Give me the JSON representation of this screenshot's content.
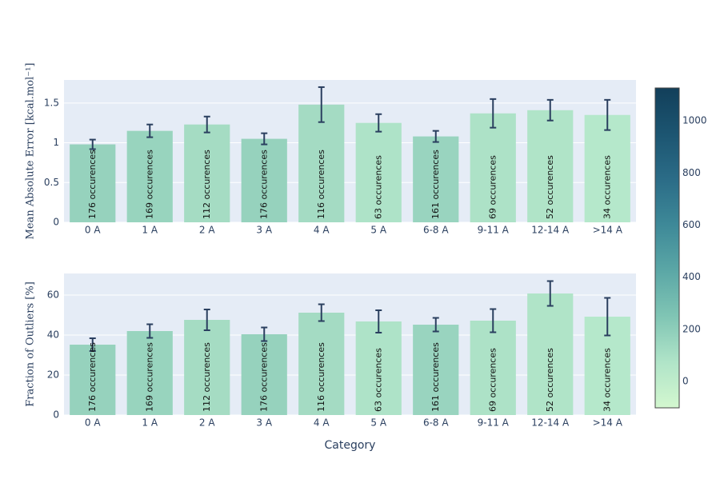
{
  "chart_data": [
    {
      "type": "bar",
      "ylabel": "Mean Absolute Error [kcal.mol⁻¹]",
      "categories": [
        "0 A",
        "1 A",
        "2 A",
        "3 A",
        "4 A",
        "5 A",
        "6-8 A",
        "9-11 A",
        "12-14 A",
        ">14 A"
      ],
      "values": [
        0.98,
        1.15,
        1.23,
        1.05,
        1.48,
        1.25,
        1.08,
        1.37,
        1.41,
        1.35
      ],
      "errors": [
        0.06,
        0.08,
        0.1,
        0.07,
        0.22,
        0.11,
        0.07,
        0.18,
        0.13,
        0.19
      ],
      "bar_labels": [
        "176 occurences",
        "169 occurences",
        "112 occurences",
        "176 occurences",
        "116 occurences",
        "63 occurences",
        "161 occurences",
        "69 occurences",
        "52 occurences",
        "34 occurences"
      ],
      "colors": [
        "#96d2bd",
        "#98d4be",
        "#a5dcc3",
        "#96d2bd",
        "#a4dbc3",
        "#aee3c8",
        "#99d4bf",
        "#ade2c7",
        "#b0e4c8",
        "#b5e8cb"
      ],
      "ylim": [
        0,
        1.79
      ],
      "yticks": [
        0,
        0.5,
        1,
        1.5
      ],
      "grid": true
    },
    {
      "type": "bar",
      "ylabel": "Fraction of Outliers [%]",
      "xlabel": "Category",
      "categories": [
        "0 A",
        "1 A",
        "2 A",
        "3 A",
        "4 A",
        "5 A",
        "6-8 A",
        "9-11 A",
        "12-14 A",
        ">14 A"
      ],
      "values": [
        35.2,
        42,
        47.6,
        40.4,
        51.2,
        46.8,
        45.2,
        47.2,
        60.8,
        49.2
      ],
      "errors": [
        3.2,
        3.4,
        5.2,
        3.4,
        4.2,
        5.6,
        3.4,
        5.8,
        6.2,
        9.4
      ],
      "bar_labels": [
        "176 occurences",
        "169 occurences",
        "112 occurences",
        "176 occurences",
        "116 occurences",
        "63 occurences",
        "161 occurences",
        "69 occurences",
        "52 occurences",
        "34 occurences"
      ],
      "colors": [
        "#96d2bd",
        "#98d4be",
        "#a5dcc3",
        "#96d2bd",
        "#a4dbc3",
        "#aee3c8",
        "#99d4bf",
        "#ade2c7",
        "#b0e4c8",
        "#b5e8cb"
      ],
      "ylim": [
        0,
        70.8
      ],
      "yticks": [
        0,
        20,
        40,
        60
      ],
      "grid": true
    }
  ],
  "colorbar": {
    "lim": [
      -101,
      1126
    ],
    "ticks": [
      0,
      200,
      400,
      600,
      800,
      1000
    ],
    "colors": [
      "#d3f7cf",
      "#b0e4c8",
      "#80c5b4",
      "#5ba7a6",
      "#3e8998",
      "#2b6c87",
      "#1c5571",
      "#123f5a"
    ]
  }
}
